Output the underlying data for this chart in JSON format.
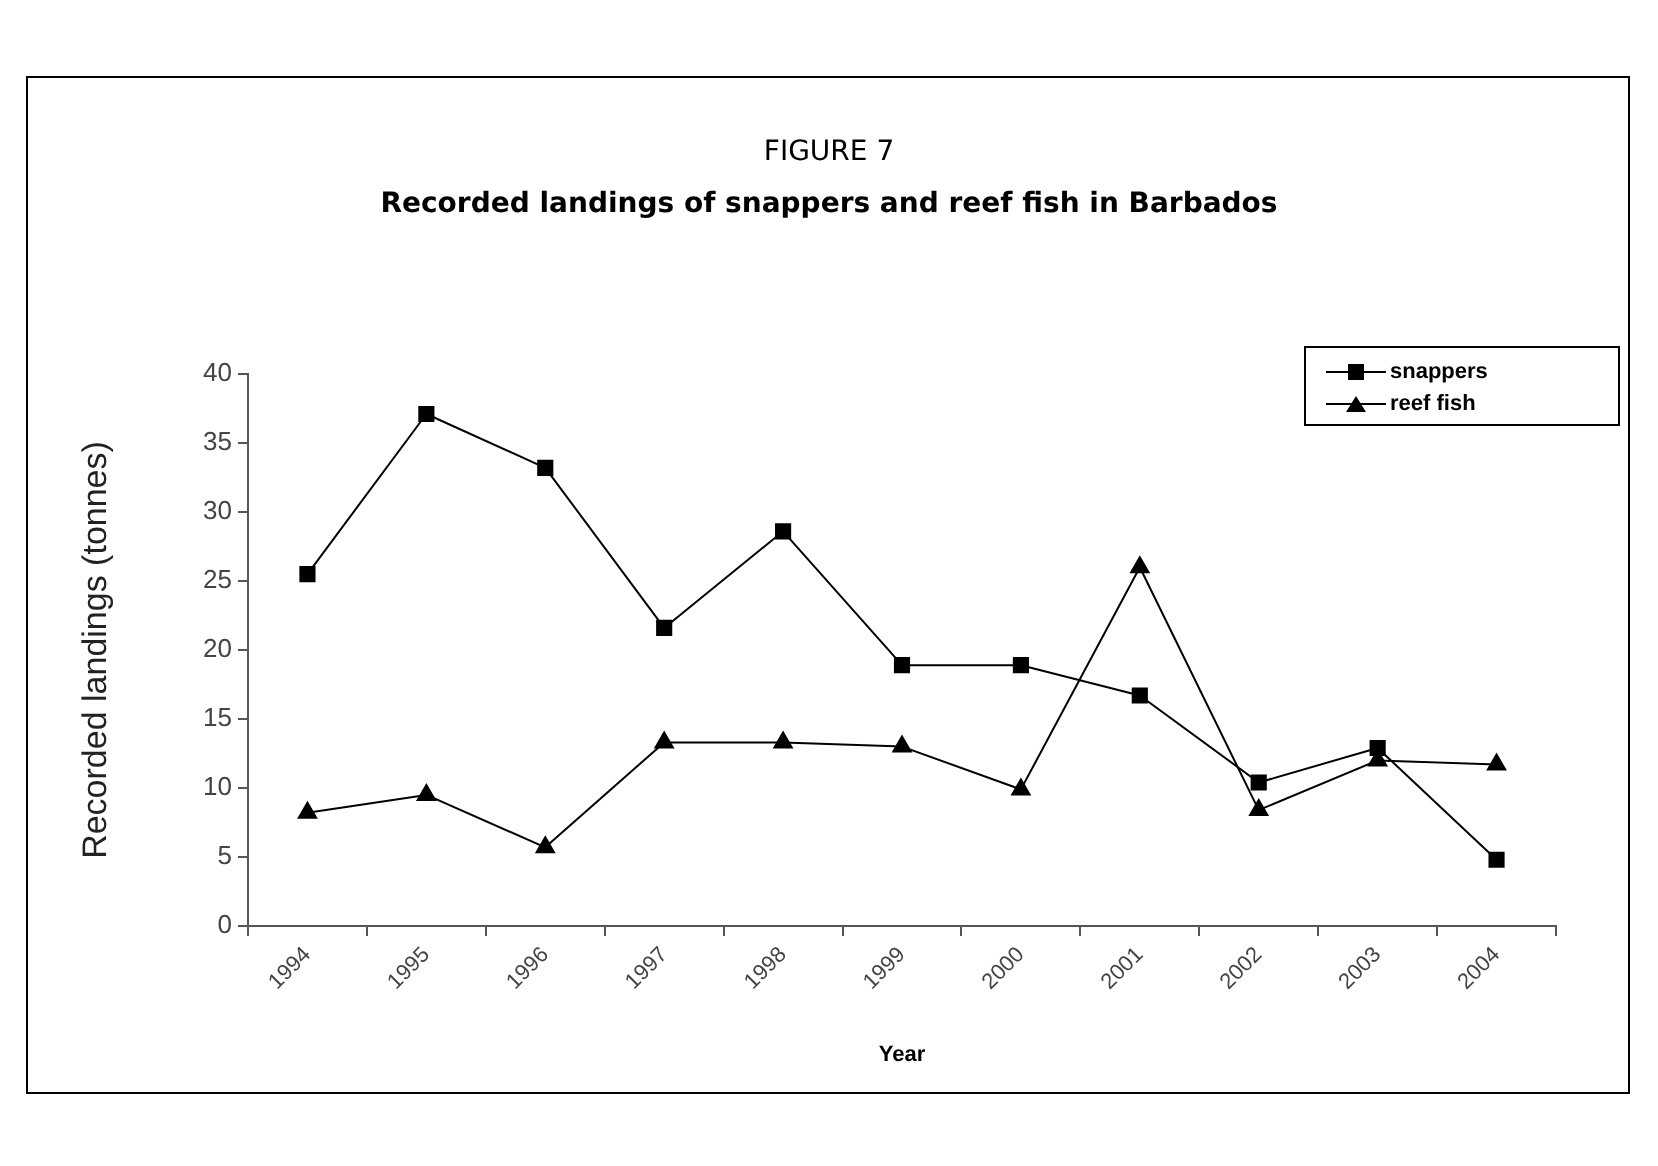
{
  "chart_data": {
    "type": "line",
    "title": "FIGURE 7",
    "subtitle": "Recorded landings of snappers and reef fish in Barbados",
    "xlabel": "Year",
    "ylabel": "Recorded landings (tonnes)",
    "categories": [
      "1994",
      "1995",
      "1996",
      "1997",
      "1998",
      "1999",
      "2000",
      "2001",
      "2002",
      "2003",
      "2004"
    ],
    "series": [
      {
        "name": "snappers",
        "color": "#000000",
        "marker": "square",
        "values": [
          25.5,
          37.1,
          33.2,
          21.6,
          28.6,
          18.9,
          18.9,
          16.7,
          10.4,
          12.9,
          4.8
        ]
      },
      {
        "name": "reef fish",
        "color": "#000000",
        "marker": "triangle",
        "values": [
          8.2,
          9.5,
          5.7,
          13.3,
          13.3,
          13.0,
          9.9,
          26.0,
          8.4,
          12.0,
          11.7
        ]
      }
    ],
    "ylim": [
      0,
      40
    ],
    "yticks": [
      0,
      5,
      10,
      15,
      20,
      25,
      30,
      35,
      40
    ],
    "grid": false,
    "legend": "top right",
    "line_style": "solid"
  }
}
